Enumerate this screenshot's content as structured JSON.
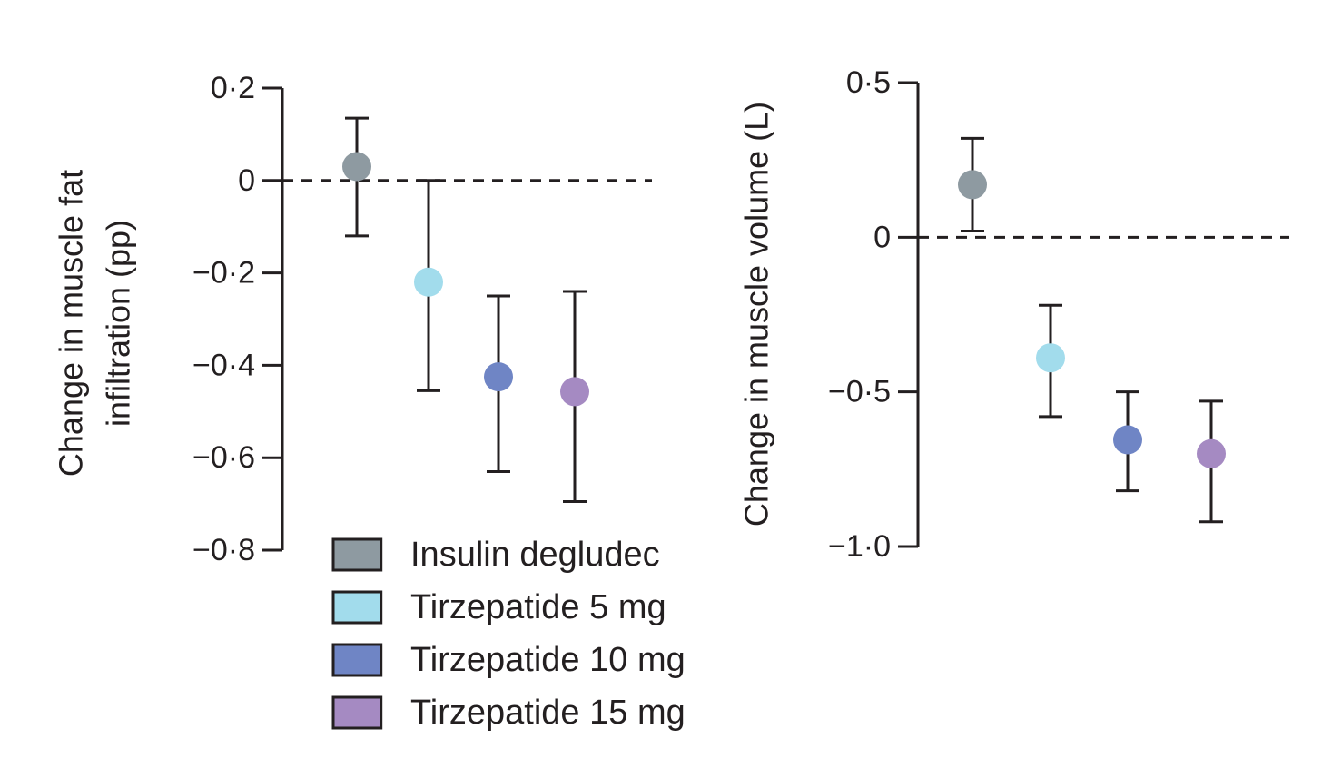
{
  "chart_data": [
    {
      "type": "scatter",
      "error_bars": true,
      "ylabel_lines": [
        "Change in muscle fat",
        "infiltration (pp)"
      ],
      "ylim": [
        -0.8,
        0.2
      ],
      "yticks": [
        0.2,
        0,
        -0.2,
        -0.4,
        -0.6,
        -0.8
      ],
      "ytick_labels": [
        "0·2",
        "0",
        "−0·2",
        "−0·4",
        "−0·6",
        "−0·8"
      ],
      "reference_line": 0,
      "grid": false,
      "points": [
        {
          "group": "Insulin degludec",
          "value": 0.03,
          "ci_low": -0.12,
          "ci_high": 0.135
        },
        {
          "group": "Tirzepatide 5 mg",
          "value": -0.22,
          "ci_low": -0.455,
          "ci_high": 0.0
        },
        {
          "group": "Tirzepatide 10 mg",
          "value": -0.425,
          "ci_low": -0.63,
          "ci_high": -0.25
        },
        {
          "group": "Tirzepatide 15 mg",
          "value": -0.457,
          "ci_low": -0.695,
          "ci_high": -0.24
        }
      ]
    },
    {
      "type": "scatter",
      "error_bars": true,
      "ylabel_lines": [
        "Change in muscle volume (L)"
      ],
      "ylim": [
        -1.0,
        0.5
      ],
      "yticks": [
        0.5,
        0,
        -0.5,
        -1.0
      ],
      "ytick_labels": [
        "0·5",
        "0",
        "−0·5",
        "−1·0"
      ],
      "reference_line": 0,
      "grid": false,
      "points": [
        {
          "group": "Insulin degludec",
          "value": 0.17,
          "ci_low": 0.02,
          "ci_high": 0.32
        },
        {
          "group": "Tirzepatide 5 mg",
          "value": -0.39,
          "ci_low": -0.58,
          "ci_high": -0.22
        },
        {
          "group": "Tirzepatide 10 mg",
          "value": -0.655,
          "ci_low": -0.82,
          "ci_high": -0.5
        },
        {
          "group": "Tirzepatide 15 mg",
          "value": -0.7,
          "ci_low": -0.92,
          "ci_high": -0.53
        }
      ]
    }
  ],
  "legend": {
    "placement": "bottom-center",
    "items": [
      {
        "label": "Insulin degludec",
        "color": "#8e9aa1"
      },
      {
        "label": "Tirzepatide 5 mg",
        "color": "#a2dcec"
      },
      {
        "label": "Tirzepatide 10 mg",
        "color": "#6f85c5"
      },
      {
        "label": "Tirzepatide 15 mg",
        "color": "#a58ac2"
      }
    ]
  },
  "colors": {
    "axis": "#231f20",
    "background": "#ffffff"
  }
}
